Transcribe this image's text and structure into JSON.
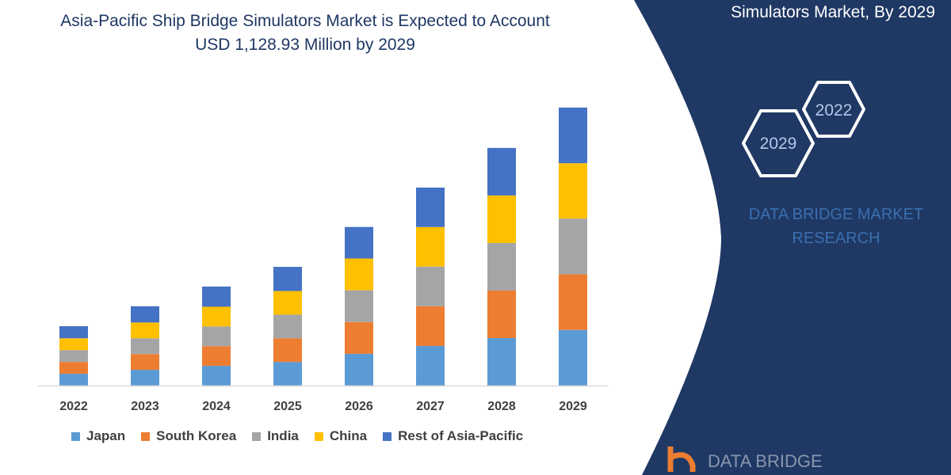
{
  "chart_data": {
    "type": "bar",
    "stacked": true,
    "title": "Asia-Pacific Ship Bridge Simulators Market is Expected to Account USD 1,128.93 Million by 2029",
    "categories": [
      "2022",
      "2023",
      "2024",
      "2025",
      "2026",
      "2027",
      "2028",
      "2029"
    ],
    "series": [
      {
        "name": "Japan",
        "color": "#5b9bd5",
        "values": [
          48,
          64,
          80,
          96,
          129,
          161,
          193,
          226
        ]
      },
      {
        "name": "South Korea",
        "color": "#ed7d31",
        "values": [
          48,
          64,
          80,
          96,
          129,
          161,
          193,
          226
        ]
      },
      {
        "name": "India",
        "color": "#a5a5a5",
        "values": [
          48,
          64,
          80,
          96,
          129,
          161,
          193,
          226
        ]
      },
      {
        "name": "China",
        "color": "#ffc000",
        "values": [
          48,
          64,
          80,
          96,
          129,
          161,
          193,
          225
        ]
      },
      {
        "name": "Rest of Asia-Pacific",
        "color": "#4472c4",
        "values": [
          49,
          66,
          82,
          98,
          128,
          160,
          193,
          226
        ]
      }
    ],
    "ylim": [
      0,
      1150
    ],
    "grid": false,
    "y_axis_visible": false,
    "legend_position": "bottom"
  },
  "side_panel": {
    "title": "Simulators Market, By 2029",
    "hex_labels": [
      "2022",
      "2029"
    ],
    "brand": "DATA BRIDGE MARKET RESEARCH",
    "color": "#1f3864"
  },
  "logo": {
    "text": "DATA BRIDGE"
  }
}
